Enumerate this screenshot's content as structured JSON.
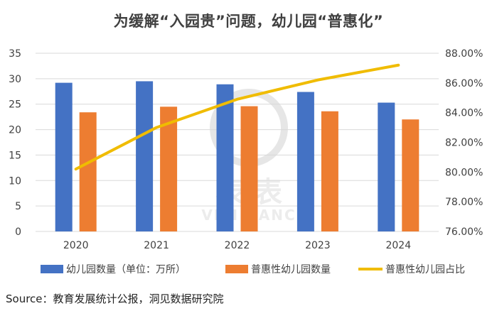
{
  "chart_data": {
    "type": "bar",
    "title": "为缓解“入园贵”问题，幼儿园“普惠化”",
    "categories": [
      "2020",
      "2021",
      "2022",
      "2023",
      "2024"
    ],
    "y_left": {
      "min": 0,
      "max": 35,
      "step": 5,
      "ticks": [
        "0",
        "5",
        "10",
        "15",
        "20",
        "25",
        "30",
        "35"
      ]
    },
    "y_right": {
      "min": 76,
      "max": 88,
      "step": 2,
      "ticks": [
        "76.00%",
        "78.00%",
        "80.00%",
        "82.00%",
        "84.00%",
        "86.00%",
        "88.00%"
      ]
    },
    "series": [
      {
        "name": "幼儿园数量（单位：万所）",
        "kind": "bar",
        "axis": "left",
        "color": "#4472C4",
        "values": [
          29.2,
          29.5,
          28.9,
          27.4,
          25.3
        ]
      },
      {
        "name": "普惠性幼儿园数量",
        "kind": "bar",
        "axis": "left",
        "color": "#ED7D31",
        "values": [
          23.4,
          24.5,
          24.6,
          23.6,
          22.0
        ]
      },
      {
        "name": "普惠性幼儿园占比",
        "kind": "line",
        "axis": "right",
        "color": "#F0BC00",
        "values": [
          80.2,
          83.0,
          84.9,
          86.2,
          87.2
        ]
      }
    ],
    "grid": true,
    "legend_position": "bottom"
  },
  "watermark": {
    "cn": "表 表",
    "en": "VISI NANC"
  },
  "source": "Source：教育发展统计公报，洞见数据研究院"
}
